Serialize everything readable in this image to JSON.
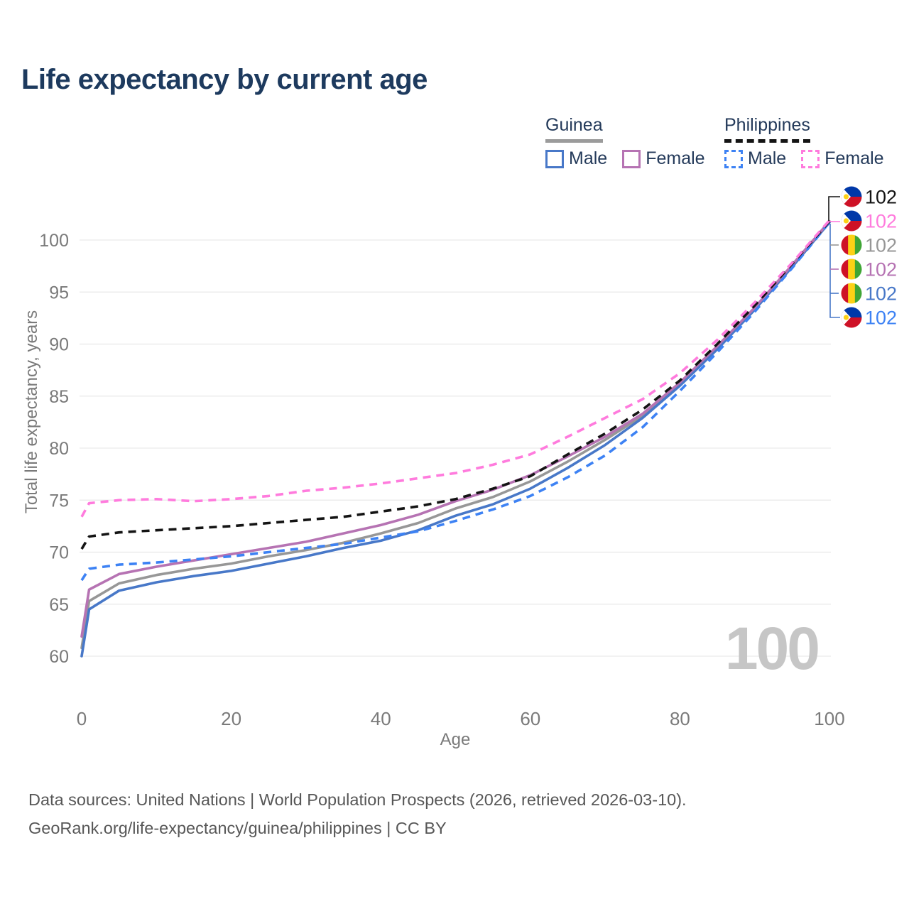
{
  "title": "Life expectancy by current age",
  "watermark": "100",
  "legend": {
    "groups": [
      {
        "name": "Guinea",
        "line_style": "solid",
        "underline_color": "#9b9b9b",
        "items": [
          {
            "label": "Male",
            "color": "#4878c8"
          },
          {
            "label": "Female",
            "color": "#b673b3"
          }
        ]
      },
      {
        "name": "Philippines",
        "line_style": "dashed",
        "underline_color": "#141414",
        "items": [
          {
            "label": "Male",
            "color": "#3d82f4"
          },
          {
            "label": "Female",
            "color": "#ff7bdd"
          }
        ]
      }
    ]
  },
  "axes": {
    "x": {
      "label": "Age",
      "ticks": [
        0,
        20,
        40,
        60,
        80,
        100
      ],
      "range": [
        0,
        100
      ]
    },
    "y": {
      "label": "Total life expectancy, years",
      "ticks": [
        60,
        65,
        70,
        75,
        80,
        85,
        90,
        95,
        100
      ],
      "range": [
        60,
        102
      ],
      "grid": true
    }
  },
  "chart_data": {
    "type": "line",
    "title": "Life expectancy by current age",
    "xlabel": "Age",
    "ylabel": "Total life expectancy, years",
    "xlim": [
      0,
      100
    ],
    "ylim": [
      60,
      102
    ],
    "grid": "horizontal",
    "legend_position": "top-right",
    "x": [
      0,
      1,
      5,
      10,
      15,
      20,
      25,
      30,
      35,
      40,
      45,
      50,
      55,
      60,
      65,
      70,
      75,
      80,
      85,
      90,
      95,
      100
    ],
    "series": [
      {
        "key": "guinea-both",
        "country": "Guinea",
        "group_line": "both sexes",
        "color": "#979797",
        "dash": false,
        "values": [
          60.8,
          65.3,
          67.0,
          67.8,
          68.4,
          68.9,
          69.6,
          70.2,
          70.9,
          71.8,
          72.8,
          74.2,
          75.3,
          76.8,
          78.7,
          80.8,
          83.1,
          86.1,
          89.7,
          93.4,
          97.5,
          101.7
        ]
      },
      {
        "key": "guinea-male",
        "country": "Guinea",
        "group_line": "Male",
        "color": "#4878c8",
        "dash": false,
        "values": [
          60.0,
          64.5,
          66.3,
          67.1,
          67.7,
          68.2,
          68.9,
          69.6,
          70.4,
          71.1,
          72.1,
          73.5,
          74.6,
          76.1,
          78.1,
          80.3,
          82.9,
          86.0,
          89.5,
          93.3,
          97.4,
          101.7
        ]
      },
      {
        "key": "guinea-female",
        "country": "Guinea",
        "group_line": "Female",
        "color": "#b673b3",
        "dash": false,
        "values": [
          61.9,
          66.4,
          67.9,
          68.6,
          69.2,
          69.8,
          70.4,
          71.0,
          71.8,
          72.6,
          73.6,
          74.9,
          76.0,
          77.4,
          79.2,
          81.1,
          83.3,
          86.3,
          89.8,
          93.5,
          97.6,
          101.8
        ]
      },
      {
        "key": "philippines-male",
        "country": "Philippines",
        "group_line": "Male",
        "color": "#3d82f4",
        "dash": true,
        "values": [
          67.3,
          68.4,
          68.8,
          69.0,
          69.3,
          69.6,
          70.0,
          70.4,
          70.8,
          71.4,
          72.0,
          73.0,
          74.1,
          75.4,
          77.2,
          79.3,
          82.0,
          85.5,
          89.2,
          93.1,
          97.3,
          101.7
        ]
      },
      {
        "key": "philippines-both",
        "country": "Philippines",
        "group_line": "both sexes",
        "color": "#141414",
        "dash": true,
        "values": [
          70.3,
          71.5,
          71.9,
          72.1,
          72.3,
          72.5,
          72.8,
          73.1,
          73.4,
          73.9,
          74.4,
          75.1,
          76.1,
          77.3,
          79.4,
          81.4,
          83.7,
          86.5,
          90.0,
          93.7,
          97.7,
          101.8
        ]
      },
      {
        "key": "philippines-female",
        "country": "Philippines",
        "group_line": "Female",
        "color": "#ff7bdd",
        "dash": true,
        "values": [
          73.4,
          74.7,
          75.0,
          75.1,
          74.9,
          75.1,
          75.4,
          75.9,
          76.2,
          76.6,
          77.1,
          77.6,
          78.4,
          79.4,
          81.1,
          82.9,
          84.7,
          87.2,
          90.4,
          94.0,
          97.8,
          101.9
        ]
      }
    ],
    "end_labels": [
      {
        "series": "philippines-both",
        "flag": "ph",
        "value": "102"
      },
      {
        "series": "philippines-female",
        "flag": "ph",
        "value": "102"
      },
      {
        "series": "guinea-both",
        "flag": "gn",
        "value": "102"
      },
      {
        "series": "guinea-female",
        "flag": "gn",
        "value": "102"
      },
      {
        "series": "guinea-male",
        "flag": "gn",
        "value": "102"
      },
      {
        "series": "philippines-male",
        "flag": "ph",
        "value": "102"
      }
    ]
  },
  "flags": {
    "ph": {
      "blue": "#0038a8",
      "red": "#ce1126",
      "white": "#ffffff",
      "sun": "#fcd116"
    },
    "gn": {
      "red": "#ce1126",
      "yellow": "#fcd116",
      "green": "#3fa535"
    }
  },
  "colors": {
    "title": "#1d3a5e",
    "legend_text": "#243a5a",
    "axis_text": "#7a7a7a",
    "gridline": "#e9e9e9",
    "watermark": "#c6c6c6",
    "footer_text": "#575757"
  },
  "footer": {
    "line1": "Data sources: United Nations | World Population Prospects (2026, retrieved 2026-03-10).",
    "line2": "GeoRank.org/life-expectancy/guinea/philippines | CC BY"
  }
}
